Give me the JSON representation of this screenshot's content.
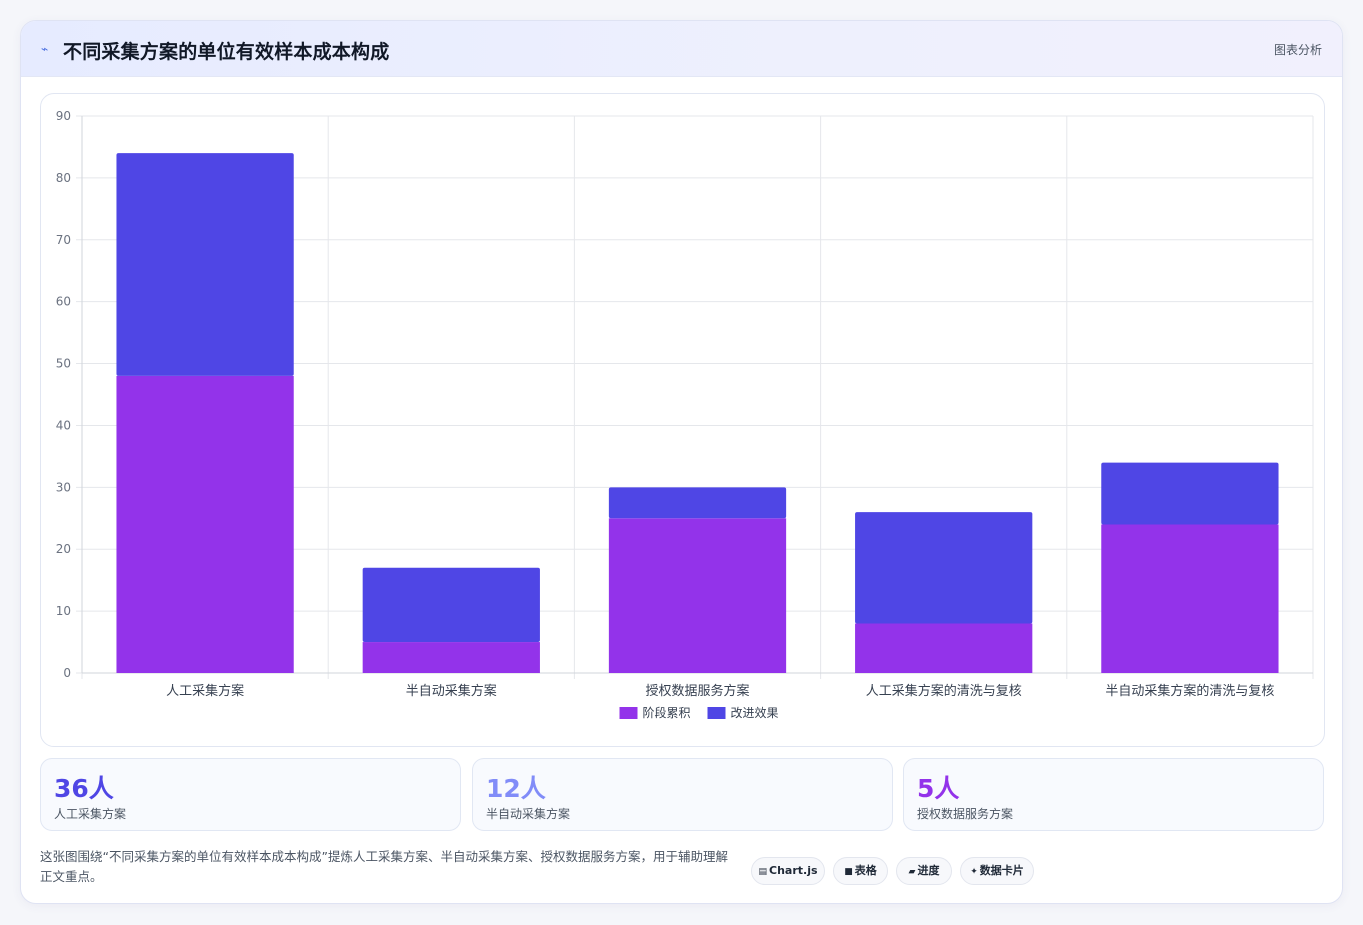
{
  "header": {
    "icon": "sparkline-icon",
    "title": "不同采集方案的单位有效样本成本构成",
    "tag": "图表分析"
  },
  "chart_data": {
    "type": "bar",
    "stacked": true,
    "categories": [
      "人工采集方案",
      "半自动采集方案",
      "授权数据服务方案",
      "人工采集方案的清洗与复核",
      "半自动采集方案的清洗与复核"
    ],
    "series": [
      {
        "name": "阶段累积",
        "color": "#9333ea",
        "values": [
          48,
          5,
          25,
          8,
          24
        ]
      },
      {
        "name": "改进效果",
        "color": "#4f46e5",
        "values": [
          36,
          12,
          5,
          18,
          10
        ]
      }
    ],
    "ylim": [
      0,
      90
    ],
    "yticks": [
      0,
      10,
      20,
      30,
      40,
      50,
      60,
      70,
      80,
      90
    ],
    "grid": true,
    "legend": "bottom"
  },
  "stats": [
    {
      "value": "36人",
      "label": "人工采集方案",
      "color": "#4f46e5"
    },
    {
      "value": "12人",
      "label": "半自动采集方案",
      "color": "#818cf8"
    },
    {
      "value": "5人",
      "label": "授权数据服务方案",
      "color": "#9333ea"
    }
  ],
  "note": "这张图围绕“不同采集方案的单位有效样本成本构成”提炼人工采集方案、半自动采集方案、授权数据服务方案，用于辅助理解正文重点。",
  "chips": [
    {
      "icon": "chart-icon",
      "glyph": "▤",
      "label": "Chart.js"
    },
    {
      "icon": "table-icon",
      "glyph": "■",
      "label": "表格"
    },
    {
      "icon": "progress-icon",
      "glyph": "▰",
      "label": "进度"
    },
    {
      "icon": "card-icon",
      "glyph": "✦",
      "label": "数据卡片"
    }
  ]
}
